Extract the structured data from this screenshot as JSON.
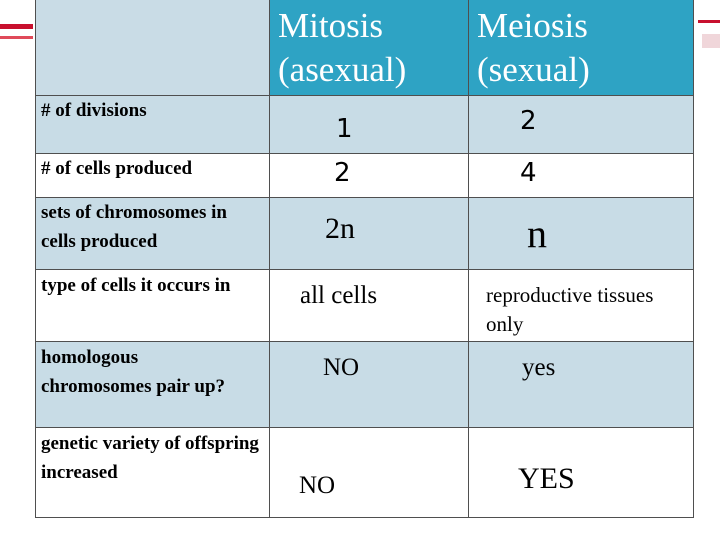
{
  "header": {
    "mitosis": "Mitosis\n(asexual)",
    "meiosis": "Meiosis\n(sexual)"
  },
  "rows": [
    {
      "label": "# of divisions",
      "mitosis": "1",
      "meiosis": "2"
    },
    {
      "label": "# of cells produced",
      "mitosis": "2",
      "meiosis": "4"
    },
    {
      "label": "sets of chromosomes in cells produced",
      "mitosis": "2n",
      "meiosis": "n"
    },
    {
      "label": "type of cells it occurs in",
      "mitosis": "all cells",
      "meiosis": "reproductive tissues only"
    },
    {
      "label": "homologous chromosomes pair up?",
      "mitosis": "NO",
      "meiosis": "yes"
    },
    {
      "label": "genetic variety of offspring increased",
      "mitosis": "NO",
      "meiosis": "YES"
    }
  ]
}
